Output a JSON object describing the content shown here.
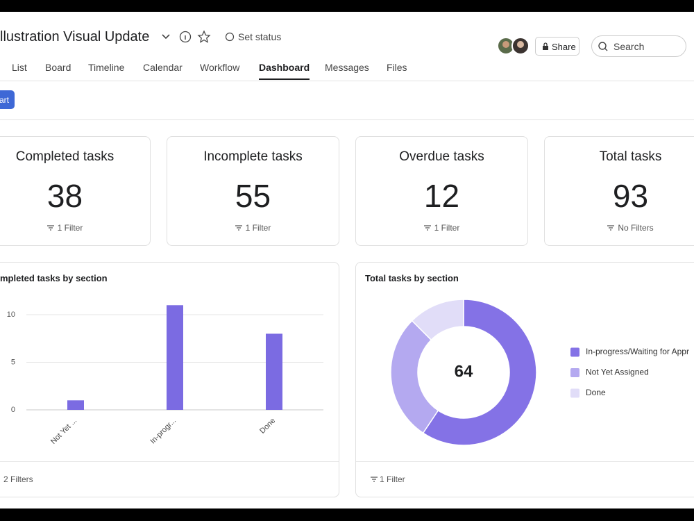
{
  "header": {
    "title": "llustration Visual Update",
    "set_status": "Set status",
    "share": "Share",
    "search": "Search"
  },
  "tabs": [
    "List",
    "Board",
    "Timeline",
    "Calendar",
    "Workflow",
    "Dashboard",
    "Messages",
    "Files"
  ],
  "active_tab": 5,
  "toolbar": {
    "button": "art"
  },
  "cards": [
    {
      "title": "Completed tasks",
      "value": 38,
      "filter": "1 Filter"
    },
    {
      "title": "Incomplete tasks",
      "value": 55,
      "filter": "1 Filter"
    },
    {
      "title": "Overdue tasks",
      "value": 12,
      "filter": "1 Filter"
    },
    {
      "title": "Total tasks",
      "value": 93,
      "filter": "No Filters"
    }
  ],
  "bar_chart": {
    "type": "bar",
    "title": "mpleted tasks by section",
    "categories": [
      "Not Yet ...",
      "In-progr...",
      "Done"
    ],
    "values": [
      1,
      11,
      8
    ],
    "color": "#7b6be2",
    "ylim": [
      0,
      11
    ],
    "yticks": [
      0,
      5,
      10
    ],
    "grid": true,
    "filter": "2 Filters"
  },
  "donut_chart": {
    "type": "donut",
    "title": "Total tasks by section",
    "center_label": 64,
    "categories": [
      "In-progress/Waiting for Appr",
      "Not Yet Assigned",
      "Done"
    ],
    "values": [
      38,
      18,
      8
    ],
    "colors": [
      "#8472e6",
      "#b4a9f0",
      "#e1ddf8"
    ],
    "filter": "1 Filter"
  }
}
